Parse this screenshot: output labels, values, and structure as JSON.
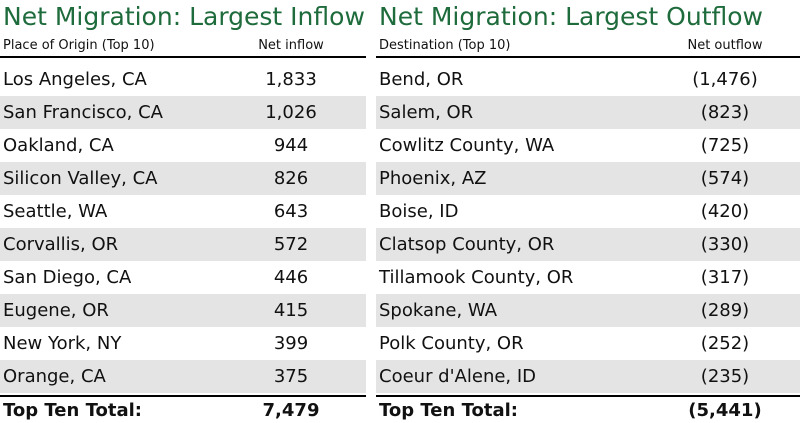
{
  "tables": [
    {
      "title": "Net Migration: Largest Inflow",
      "header": [
        "Place of Origin (Top 10)",
        "Net inflow"
      ],
      "rows": [
        [
          "Los Angeles, CA",
          "1,833"
        ],
        [
          "San Francisco, CA",
          "1,026"
        ],
        [
          "Oakland, CA",
          "944"
        ],
        [
          "Silicon Valley, CA",
          "826"
        ],
        [
          "Seattle, WA",
          "643"
        ],
        [
          "Corvallis, OR",
          "572"
        ],
        [
          "San Diego, CA",
          "446"
        ],
        [
          "Eugene, OR",
          "415"
        ],
        [
          "New York, NY",
          "399"
        ],
        [
          "Orange, CA",
          "375"
        ]
      ],
      "total": [
        "Top Ten Total:",
        "7,479"
      ]
    },
    {
      "title": "Net Migration: Largest Outflow",
      "header": [
        "Destination (Top 10)",
        "Net outflow"
      ],
      "rows": [
        [
          "Bend, OR",
          "(1,476)"
        ],
        [
          "Salem, OR",
          "(823)"
        ],
        [
          "Cowlitz County, WA",
          "(725)"
        ],
        [
          "Phoenix, AZ",
          "(574)"
        ],
        [
          "Boise, ID",
          "(420)"
        ],
        [
          "Clatsop County, OR",
          "(330)"
        ],
        [
          "Tillamook County, OR",
          "(317)"
        ],
        [
          "Spokane, WA",
          "(289)"
        ],
        [
          "Polk County, OR",
          "(252)"
        ],
        [
          "Coeur d'Alene, ID",
          "(235)"
        ]
      ],
      "total": [
        "Top Ten Total:",
        "(5,441)"
      ]
    }
  ]
}
